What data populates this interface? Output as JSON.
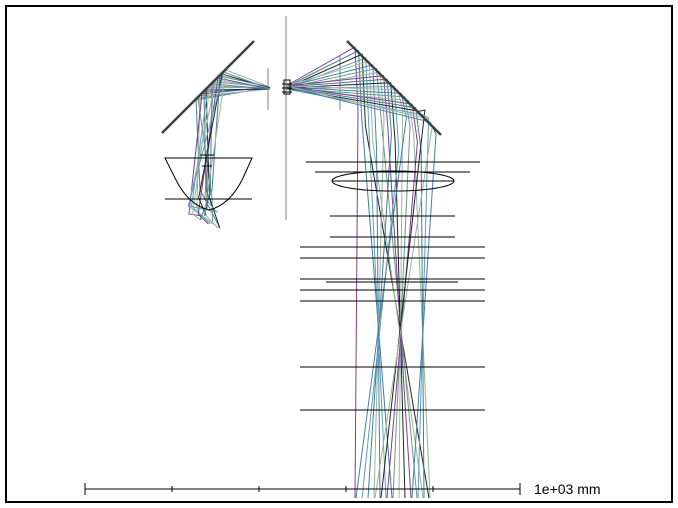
{
  "scale_bar": {
    "label": "1e+03 mm",
    "divisions": 5
  },
  "colors": {
    "frame": "#000000",
    "mirror": "#404040",
    "element": "#000000",
    "axis": "#808080",
    "ray_colors": [
      "#4a7fa8",
      "#6b9a7f",
      "#8fb5a0",
      "#7a3fa0",
      "#3f7f8f",
      "#222222",
      "#5aa0b8",
      "#9bb89a"
    ]
  }
}
